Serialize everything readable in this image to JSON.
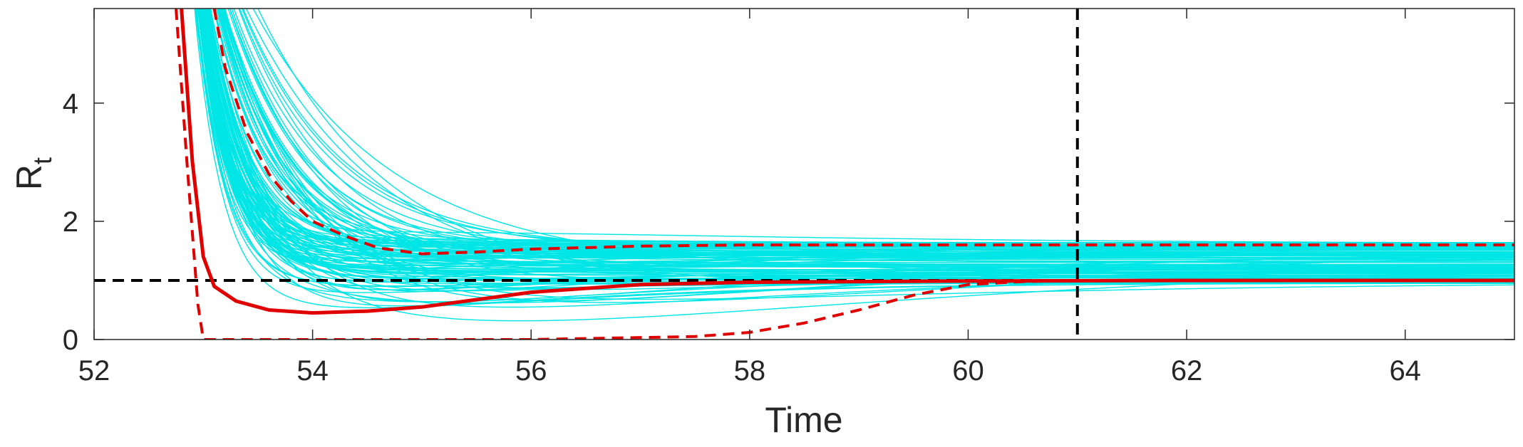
{
  "chart_data": {
    "type": "line",
    "xlabel": "Time",
    "ylabel": "R",
    "ylabel_subscript": "t",
    "xlim": [
      52,
      65
    ],
    "ylim": [
      0,
      5.6
    ],
    "xticks": [
      52,
      54,
      56,
      58,
      60,
      62,
      64
    ],
    "yticks": [
      0,
      2,
      4
    ],
    "grid": false,
    "reference_lines": {
      "horizontal_y": 1,
      "vertical_x": 61
    },
    "colors": {
      "samples": "#00e5e5",
      "median": "#e00000",
      "bounds": "#e00000",
      "reference": "#000000",
      "axis": "#262626"
    },
    "sample_trajectories": {
      "count": 120,
      "start_time": 52.8,
      "final_range": [
        0.95,
        1.65
      ],
      "color_key": "samples"
    },
    "series": [
      {
        "style": "solid",
        "x": [
          52.8,
          52.9,
          53.0,
          53.1,
          53.3,
          53.6,
          54.0,
          54.5,
          55.0,
          56.0,
          57.0,
          58.0,
          60.0,
          62.0,
          65.0
        ],
        "y": [
          5.6,
          3.0,
          1.4,
          0.9,
          0.65,
          0.5,
          0.45,
          0.48,
          0.55,
          0.8,
          0.93,
          0.97,
          0.99,
          1.0,
          1.0
        ]
      },
      {
        "style": "dashed",
        "x": [
          53.1,
          53.2,
          53.4,
          53.6,
          53.8,
          54.0,
          54.3,
          54.6,
          55.0,
          55.5,
          56.0,
          57.0,
          58.0,
          59.0,
          60.0,
          61.0,
          62.0,
          63.0,
          64.0,
          65.0
        ],
        "y": [
          5.6,
          4.6,
          3.5,
          2.8,
          2.35,
          2.0,
          1.75,
          1.55,
          1.45,
          1.48,
          1.53,
          1.58,
          1.6,
          1.6,
          1.6,
          1.6,
          1.6,
          1.6,
          1.6,
          1.6
        ]
      },
      {
        "style": "dashed",
        "x": [
          52.75,
          52.85,
          52.95,
          53.0,
          53.2,
          54.0,
          56.0,
          57.5,
          58.0,
          58.5,
          59.0,
          59.5,
          60.0,
          60.5,
          61.0,
          62.0,
          65.0
        ],
        "y": [
          5.6,
          3.0,
          0.6,
          0.0,
          0.0,
          0.0,
          0.0,
          0.05,
          0.12,
          0.28,
          0.5,
          0.75,
          0.93,
          0.98,
          1.0,
          1.0,
          1.0
        ]
      }
    ]
  }
}
